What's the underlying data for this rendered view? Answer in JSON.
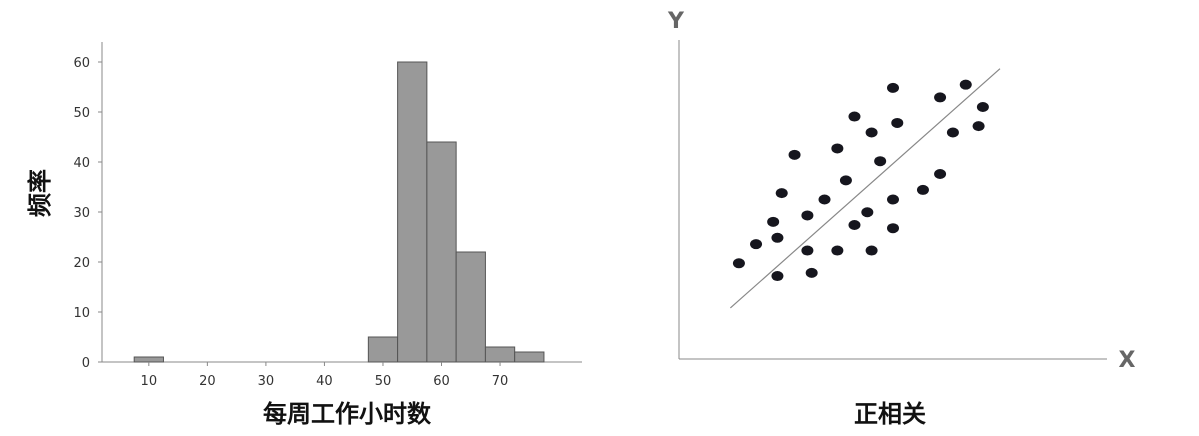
{
  "chart_data": [
    {
      "type": "bar",
      "xlabel": "每周工作小时数",
      "ylabel": "频率",
      "x_ticks": [
        "10",
        "20",
        "30",
        "40",
        "50",
        "60",
        "70"
      ],
      "y_ticks": [
        "0",
        "10",
        "20",
        "30",
        "40",
        "50",
        "60"
      ],
      "xlim": [
        2,
        84
      ],
      "ylim": [
        0,
        64
      ],
      "bins": [
        {
          "start": 7.5,
          "end": 12.5,
          "value": 1
        },
        {
          "start": 47.5,
          "end": 52.5,
          "value": 5
        },
        {
          "start": 52.5,
          "end": 57.5,
          "value": 60
        },
        {
          "start": 57.5,
          "end": 62.5,
          "value": 44
        },
        {
          "start": 62.5,
          "end": 67.5,
          "value": 22
        },
        {
          "start": 67.5,
          "end": 72.5,
          "value": 3
        },
        {
          "start": 72.5,
          "end": 77.5,
          "value": 2
        }
      ],
      "bar_color": "#999999",
      "bar_edge_color": "#555555",
      "grid": false
    },
    {
      "type": "scatter",
      "xlabel": "X",
      "ylabel": "Y",
      "title": "正相关",
      "xlim": [
        0,
        100
      ],
      "ylim": [
        0,
        100
      ],
      "points": [
        {
          "x": 14,
          "y": 30
        },
        {
          "x": 18,
          "y": 36
        },
        {
          "x": 22,
          "y": 43
        },
        {
          "x": 23,
          "y": 26
        },
        {
          "x": 23,
          "y": 38
        },
        {
          "x": 24,
          "y": 52
        },
        {
          "x": 27,
          "y": 64
        },
        {
          "x": 30,
          "y": 45
        },
        {
          "x": 30,
          "y": 34
        },
        {
          "x": 31,
          "y": 27
        },
        {
          "x": 34,
          "y": 50
        },
        {
          "x": 37,
          "y": 34
        },
        {
          "x": 37,
          "y": 66
        },
        {
          "x": 39,
          "y": 56
        },
        {
          "x": 41,
          "y": 42
        },
        {
          "x": 41,
          "y": 76
        },
        {
          "x": 44,
          "y": 46
        },
        {
          "x": 45,
          "y": 34
        },
        {
          "x": 45,
          "y": 71
        },
        {
          "x": 47,
          "y": 62
        },
        {
          "x": 50,
          "y": 50
        },
        {
          "x": 50,
          "y": 41
        },
        {
          "x": 50,
          "y": 85
        },
        {
          "x": 51,
          "y": 74
        },
        {
          "x": 57,
          "y": 53
        },
        {
          "x": 61,
          "y": 58
        },
        {
          "x": 61,
          "y": 82
        },
        {
          "x": 64,
          "y": 71
        },
        {
          "x": 67,
          "y": 86
        },
        {
          "x": 70,
          "y": 73
        },
        {
          "x": 71,
          "y": 79
        }
      ],
      "trend_line": {
        "x1": 12,
        "y1": 16,
        "x2": 75,
        "y2": 91
      },
      "point_color": "#16161e",
      "line_color": "#888888",
      "axis_color": "#888888"
    }
  ]
}
